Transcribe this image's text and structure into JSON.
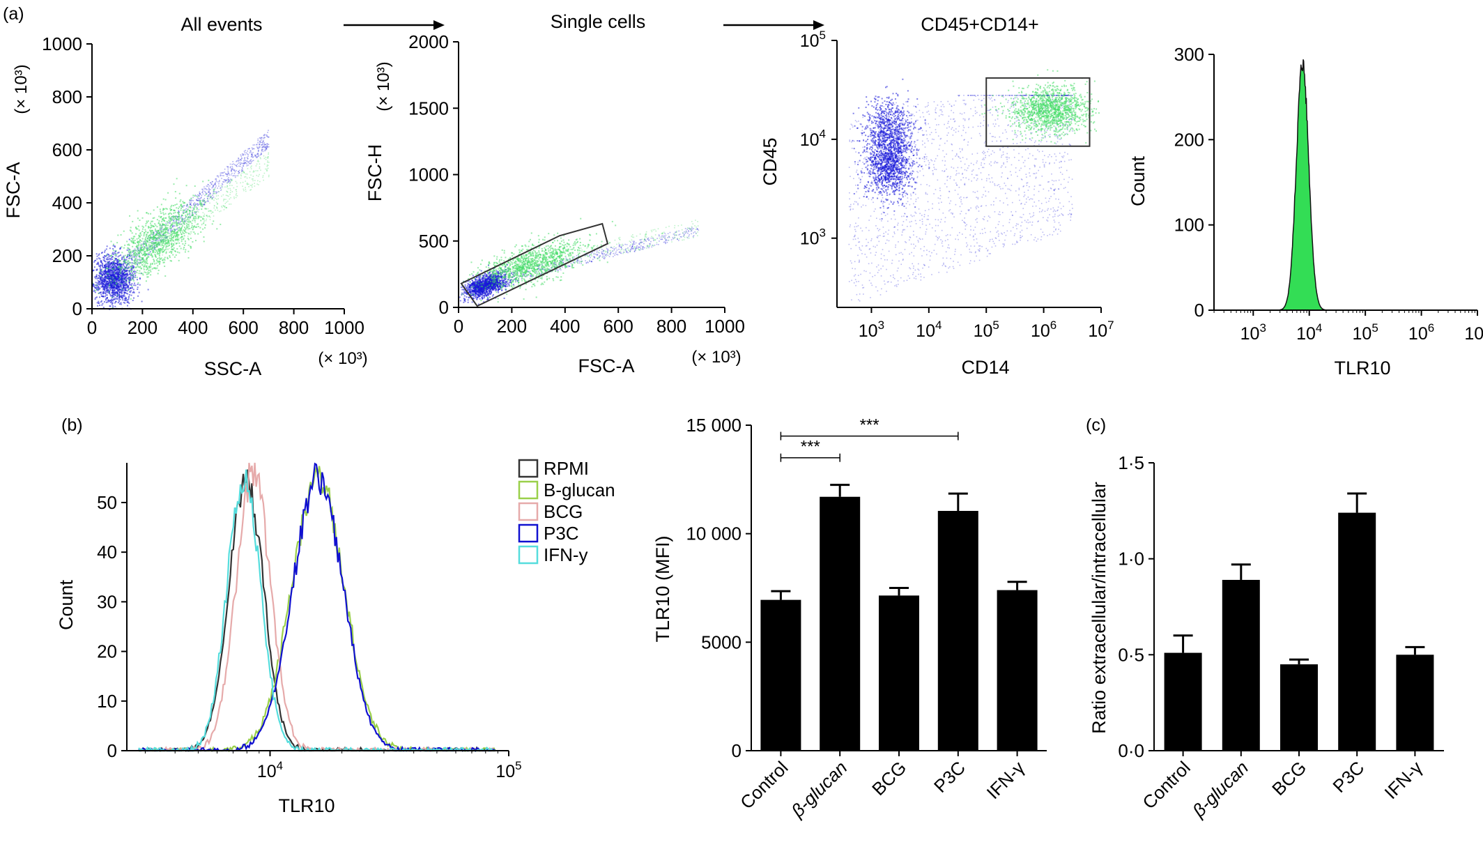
{
  "panel_labels": {
    "a": "(a)",
    "b": "(b)",
    "c": "(c)"
  },
  "chart_data": [
    {
      "id": "a1",
      "type": "scatter",
      "title": "All events",
      "xlabel": "SSC-A",
      "ylabel": "FSC-A",
      "x_unit": "(× 10³)",
      "y_unit": "(× 10³)",
      "xlim": [
        0,
        1000
      ],
      "ylim": [
        0,
        1000
      ],
      "x_ticks": [
        "0",
        "200",
        "400",
        "600",
        "800",
        "1000"
      ],
      "y_ticks": [
        "0",
        "200",
        "400",
        "600",
        "800",
        "1000"
      ],
      "populations": [
        {
          "color": "#1a1ad8",
          "center": [
            85,
            115
          ],
          "spread": [
            40,
            45
          ]
        },
        {
          "color": "#44dd66",
          "center": [
            260,
            260
          ],
          "spread": [
            90,
            55
          ]
        }
      ]
    },
    {
      "id": "a2",
      "type": "scatter",
      "title": "Single cells",
      "xlabel": "FSC-A",
      "ylabel": "FSC-H",
      "x_unit": "(× 10³)",
      "y_unit": "(× 10³)",
      "xlim": [
        0,
        1000
      ],
      "ylim": [
        0,
        2000
      ],
      "x_ticks": [
        "0",
        "200",
        "400",
        "600",
        "800",
        "1000"
      ],
      "y_ticks": [
        "0",
        "500",
        "1000",
        "1500",
        "2000"
      ],
      "gate": [
        [
          10,
          180
        ],
        [
          70,
          10
        ],
        [
          560,
          480
        ],
        [
          540,
          630
        ],
        [
          380,
          540
        ]
      ],
      "populations": [
        {
          "color": "#1a1ad8",
          "center": [
            100,
            170
          ],
          "spread": [
            40,
            40
          ]
        },
        {
          "color": "#44dd66",
          "center": [
            270,
            330
          ],
          "spread": [
            100,
            70
          ]
        }
      ]
    },
    {
      "id": "a3",
      "type": "scatter",
      "title": "CD45+CD14+",
      "xlabel": "CD14",
      "ylabel": "CD45",
      "x_scale": "log",
      "y_scale": "log",
      "xlim": [
        2.4,
        7.0
      ],
      "ylim": [
        2.3,
        5.0
      ],
      "x_ticks": [
        {
          "b": "10",
          "e": "3"
        },
        {
          "b": "10",
          "e": "4"
        },
        {
          "b": "10",
          "e": "5"
        },
        {
          "b": "10",
          "e": "6"
        },
        {
          "b": "10",
          "e": "7"
        }
      ],
      "y_ticks": [
        {
          "b": "10",
          "e": "3"
        },
        {
          "b": "10",
          "e": "4"
        },
        {
          "b": "10",
          "e": "5"
        }
      ],
      "gate": [
        [
          5.0,
          4.62
        ],
        [
          7.0,
          4.62
        ],
        [
          7.0,
          3.93
        ],
        [
          5.0,
          3.93
        ]
      ],
      "populations": [
        {
          "color": "#1a1ad8",
          "center": [
            3.3,
            4.05
          ],
          "spread": [
            0.2,
            0.18
          ]
        },
        {
          "color": "#1a1ad8",
          "center": [
            3.3,
            3.7
          ],
          "spread": [
            0.2,
            0.15
          ]
        },
        {
          "color": "#44dd66",
          "center": [
            6.1,
            4.3
          ],
          "spread": [
            0.35,
            0.12
          ]
        }
      ]
    },
    {
      "id": "a4",
      "type": "area",
      "xlabel": "TLR10",
      "ylabel": "Count",
      "x_scale": "log",
      "xlim": [
        2.3,
        7.0
      ],
      "ylim": [
        0,
        300
      ],
      "x_ticks": [
        {
          "b": "10",
          "e": "3"
        },
        {
          "b": "10",
          "e": "4"
        },
        {
          "b": "10",
          "e": "5"
        },
        {
          "b": "10",
          "e": "6"
        },
        {
          "b": "10",
          "e": "7"
        }
      ],
      "y_ticks": [
        "0",
        "100",
        "200",
        "300"
      ],
      "peak": {
        "center": 3.88,
        "width": 0.11,
        "height": 290,
        "color": "#33dd55"
      }
    },
    {
      "id": "b1",
      "type": "line",
      "xlabel": "TLR10",
      "ylabel": "Count",
      "x_scale": "log",
      "xlim": [
        3.4,
        5.0
      ],
      "ylim": [
        0,
        58
      ],
      "x_ticks": [
        {
          "b": "10",
          "e": "4"
        },
        {
          "b": "10",
          "e": "5"
        }
      ],
      "y_ticks": [
        "0",
        "10",
        "20",
        "30",
        "40",
        "50"
      ],
      "legend_position": "right",
      "series": [
        {
          "name": "RPMI",
          "color": "#333333",
          "center": 3.9,
          "width": 0.072,
          "peak": 55
        },
        {
          "name": "B-glucan",
          "color": "#9ad04a",
          "center": 4.2,
          "width": 0.11,
          "peak": 55
        },
        {
          "name": "BCG",
          "color": "#e6aaaa",
          "center": 3.93,
          "width": 0.072,
          "peak": 56
        },
        {
          "name": "P3C",
          "color": "#1010d0",
          "center": 4.2,
          "width": 0.105,
          "peak": 55
        },
        {
          "name": "IFN-y",
          "color": "#55dddd",
          "center": 3.89,
          "width": 0.07,
          "peak": 55
        }
      ]
    },
    {
      "id": "b2",
      "type": "bar",
      "ylabel": "TLR10 (MFI)",
      "categories": [
        "Control",
        "β-glucan",
        "BCG",
        "P3C",
        "IFN-γ"
      ],
      "values": [
        6950,
        11700,
        7150,
        11050,
        7400
      ],
      "errors": [
        400,
        550,
        350,
        800,
        380
      ],
      "ylim": [
        0,
        15000
      ],
      "y_ticks": [
        "0",
        "5000",
        "10 000",
        "15 000"
      ],
      "significance": [
        {
          "from": 0,
          "to": 1,
          "label": "***",
          "y": 13500
        },
        {
          "from": 0,
          "to": 3,
          "label": "***",
          "y": 14500
        }
      ]
    },
    {
      "id": "c",
      "type": "bar",
      "ylabel": "Ratio extracellular/intracellular",
      "categories": [
        "Control",
        "β-glucan",
        "BCG",
        "P3C",
        "IFN-γ"
      ],
      "values": [
        0.51,
        0.89,
        0.45,
        1.24,
        0.5
      ],
      "errors": [
        0.09,
        0.08,
        0.025,
        0.1,
        0.04
      ],
      "ylim": [
        0,
        1.5
      ],
      "y_ticks": [
        "0·0",
        "0·5",
        "1·0",
        "1·5"
      ]
    }
  ]
}
